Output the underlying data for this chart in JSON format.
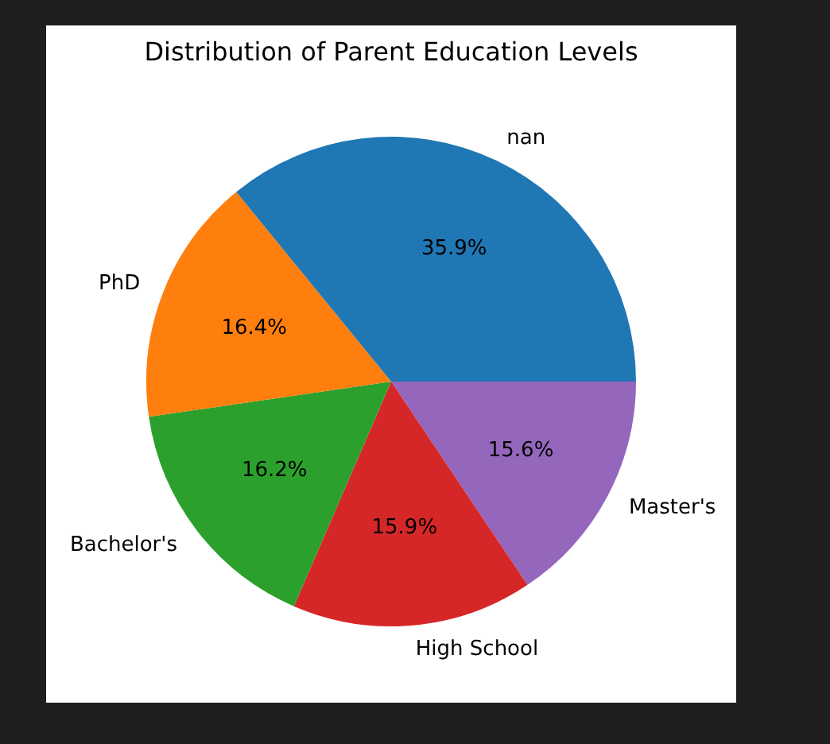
{
  "chart_data": {
    "type": "pie",
    "title": "Distribution of Parent Education Levels",
    "categories": [
      "nan",
      "PhD",
      "Bachelor's",
      "High School",
      "Master's"
    ],
    "values": [
      35.9,
      16.4,
      16.2,
      15.9,
      15.6
    ],
    "colors": [
      "#1f77b4",
      "#ff7f0e",
      "#2ca02c",
      "#d62728",
      "#9467bd"
    ],
    "value_labels": [
      "35.9%",
      "16.4%",
      "16.2%",
      "15.9%",
      "15.6%"
    ],
    "legend": false
  }
}
